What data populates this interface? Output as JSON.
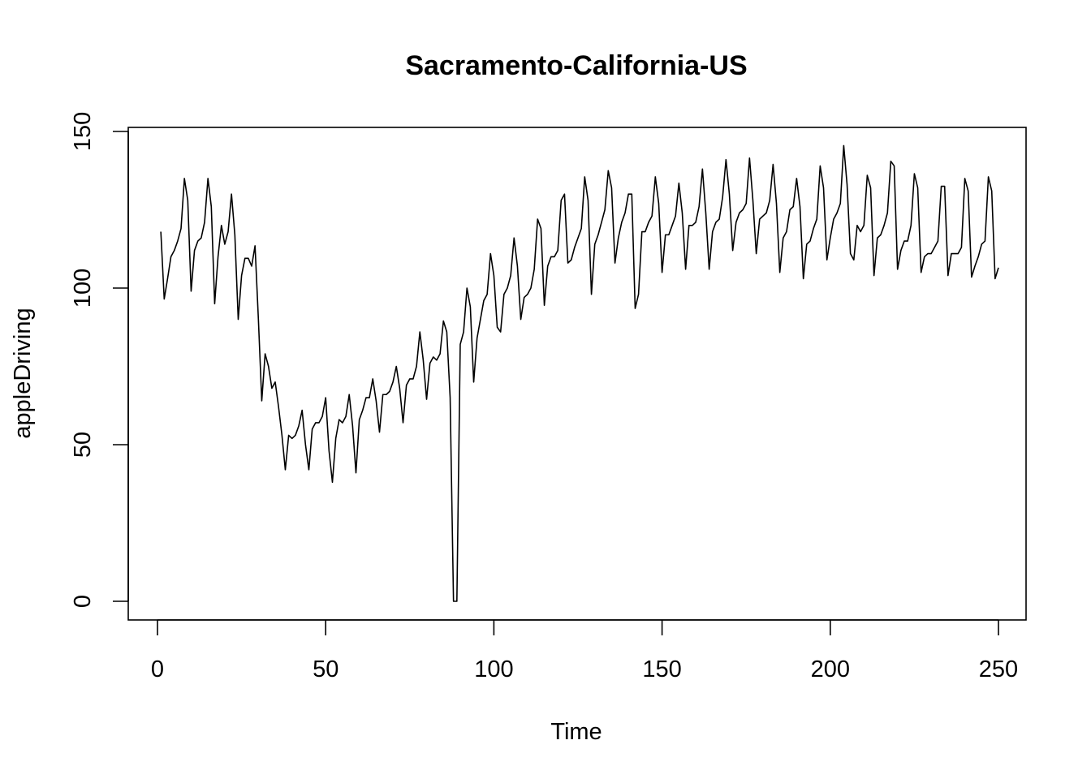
{
  "chart_data": {
    "type": "line",
    "title": "Sacramento-California-US",
    "xlabel": "Time",
    "ylabel": "appleDriving",
    "xlim": [
      0,
      250
    ],
    "ylim": [
      0,
      150
    ],
    "x_ticks": [
      0,
      50,
      100,
      150,
      200,
      250
    ],
    "y_ticks": [
      0,
      50,
      100,
      150
    ],
    "x_tick_labels": [
      "0",
      "50",
      "100",
      "150",
      "200",
      "250"
    ],
    "y_tick_labels": [
      "0",
      "50",
      "100",
      "150"
    ],
    "grid": false,
    "legend": "none",
    "line_color": "#000000",
    "x_start": 1,
    "values": [
      118,
      96.5,
      103,
      110,
      112,
      115,
      119,
      135,
      128,
      99,
      112,
      115,
      116,
      121,
      135,
      126,
      95,
      110,
      120,
      114,
      118,
      130,
      117,
      90,
      104,
      109.5,
      109.5,
      107,
      113.5,
      90,
      64,
      79,
      75,
      68,
      70,
      62,
      53,
      42,
      53,
      52,
      53,
      56,
      61,
      50,
      42,
      55,
      57,
      57,
      59,
      65,
      48,
      38,
      52,
      58,
      57,
      59,
      66,
      56,
      41,
      58,
      61,
      65,
      65,
      71,
      64,
      54,
      66,
      66,
      67,
      70,
      75,
      68,
      57,
      69,
      71,
      71,
      75,
      86,
      77,
      64.5,
      76,
      78,
      77,
      79,
      89.5,
      86,
      65,
      0,
      0,
      82,
      86,
      100,
      94,
      70,
      84,
      90,
      96,
      98,
      111,
      104,
      87.5,
      86,
      98,
      100,
      104,
      116,
      107,
      90,
      97,
      98,
      100,
      106,
      122,
      119,
      94.5,
      107,
      110,
      110,
      112,
      128,
      130,
      108,
      109,
      113,
      116,
      119,
      135.5,
      128,
      98,
      114,
      117,
      121,
      125,
      137.5,
      132,
      108,
      116,
      121,
      124,
      130,
      130,
      93.5,
      98,
      118,
      118,
      121,
      123,
      135.5,
      127,
      105,
      117,
      117,
      120,
      123,
      133.5,
      124,
      106,
      120,
      120,
      121,
      126,
      138,
      124,
      106,
      118,
      121,
      122,
      129,
      141,
      130,
      112,
      121,
      124,
      125,
      127,
      141.5,
      128,
      111,
      122,
      123,
      124,
      128,
      139.5,
      127,
      105,
      116,
      118,
      125,
      126,
      135,
      126,
      103,
      114,
      115,
      119,
      122,
      139,
      132,
      109,
      116,
      122,
      124,
      127,
      145.5,
      133,
      111,
      109,
      120,
      118,
      120,
      136,
      132,
      104,
      116,
      117,
      120,
      124,
      140.5,
      139,
      106,
      112,
      115,
      115,
      120,
      136.5,
      132,
      105,
      110,
      111,
      111,
      113,
      115,
      132.5,
      132.5,
      104,
      111,
      111,
      111,
      113,
      135,
      131,
      103.5,
      107,
      110,
      114,
      115,
      135.5,
      131,
      103,
      106.5
    ]
  }
}
